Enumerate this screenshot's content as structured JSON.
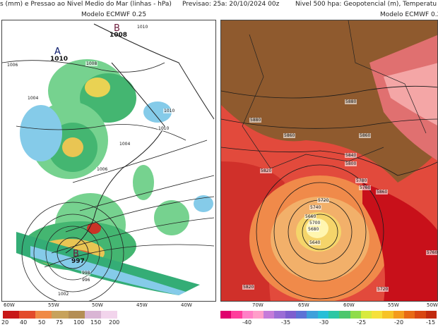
{
  "header": {
    "left_title": "s (mm) e Pressao ao Nivel Medio do Mar (linhas - hPa)",
    "center_title": "Previsao: 25",
    "date_title": "a: 20/10/2024 00z",
    "right_title": "Nivel 500 hpa: Geopotencial (m), Temperatu"
  },
  "left_panel": {
    "model": "Modelo ECMWF 0.25",
    "high_letter": "B",
    "high_value": "1008",
    "a_letter": "A",
    "a_value": "1010",
    "low_letter": "B",
    "low_value": "997",
    "isobars": [
      "1010",
      "1006",
      "1004",
      "1008",
      "1010",
      "1010",
      "1004",
      "1006",
      "998",
      "996",
      "1002"
    ],
    "lon_labels": [
      "60W",
      "55W",
      "50W",
      "45W",
      "40W"
    ],
    "colorbar_values": [
      "20",
      "40",
      "50",
      "75",
      "100",
      "150",
      "200"
    ],
    "colorbar_colors": [
      "#c81717",
      "#e34b2a",
      "#f08a45",
      "#c7a25b",
      "#b48e55",
      "#d9b5d4",
      "#f2d4ec",
      "#ffffff"
    ]
  },
  "right_panel": {
    "model": "Modelo ECMWF 0.2",
    "contours": [
      "5880",
      "5860",
      "5880",
      "5860",
      "5840",
      "5820",
      "5800",
      "5780",
      "5760",
      "5740",
      "5720",
      "5660",
      "5640",
      "5700",
      "5680",
      "5860",
      "5720",
      "5760",
      "5820"
    ],
    "lon_labels": [
      "70W",
      "65W",
      "60W",
      "55W",
      "50W"
    ],
    "colorbar_values": [
      "-40",
      "-35",
      "-30",
      "-25",
      "-20",
      "-15"
    ],
    "colorbar_colors": [
      "#e0006e",
      "#ff3d9b",
      "#ff7fc6",
      "#ff9ec9",
      "#c57bd9",
      "#9b6dd6",
      "#7e5ecf",
      "#5c72d6",
      "#3ea0db",
      "#27bfd7",
      "#2bc7a4",
      "#4cc76d",
      "#8fdc4a",
      "#d8ea3e",
      "#f6e13a",
      "#f7c326",
      "#f49b1c",
      "#e86a14",
      "#d94611",
      "#c12a0e"
    ]
  }
}
